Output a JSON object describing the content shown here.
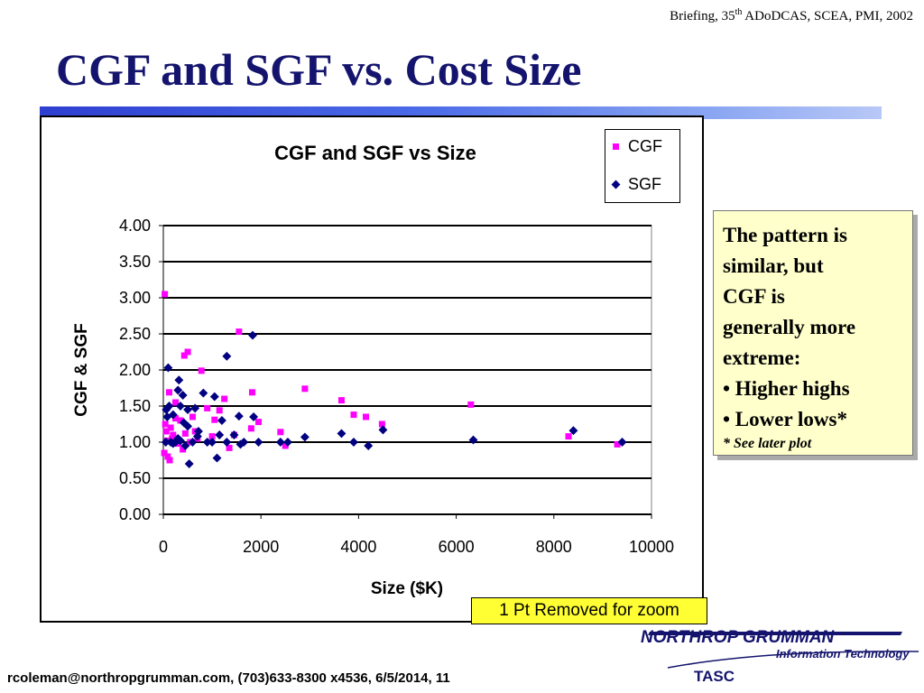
{
  "header": {
    "briefing_prefix": "Briefing, 35",
    "briefing_sup": "th",
    "briefing_suffix": " ADoDCAS, SCEA, PMI, 2002"
  },
  "slide_title": "CGF and SGF vs. Cost Size",
  "chart_data": {
    "type": "scatter",
    "title": "CGF and SGF vs Size",
    "xlabel": "Size ($K)",
    "ylabel": "CGF & SGF",
    "xlim": [
      0,
      10000
    ],
    "ylim": [
      0,
      4
    ],
    "x_ticks": [
      "0",
      "2000",
      "4000",
      "6000",
      "8000",
      "10000"
    ],
    "y_ticks": [
      "0.00",
      "0.50",
      "1.00",
      "1.50",
      "2.00",
      "2.50",
      "3.00",
      "3.50",
      "4.00"
    ],
    "grid": "horizontal",
    "legend_position": "top-right",
    "series": [
      {
        "name": "CGF",
        "color": "#ff00ff",
        "marker": "square",
        "points": [
          [
            30,
            3.05
          ],
          [
            1550,
            2.53
          ],
          [
            500,
            2.25
          ],
          [
            430,
            2.2
          ],
          [
            780,
            1.99
          ],
          [
            2900,
            1.74
          ],
          [
            120,
            1.69
          ],
          [
            1820,
            1.69
          ],
          [
            3650,
            1.58
          ],
          [
            1250,
            1.6
          ],
          [
            6300,
            1.52
          ],
          [
            900,
            1.47
          ],
          [
            1150,
            1.44
          ],
          [
            3900,
            1.38
          ],
          [
            4150,
            1.35
          ],
          [
            1050,
            1.31
          ],
          [
            1950,
            1.28
          ],
          [
            4480,
            1.25
          ],
          [
            250,
            1.33
          ],
          [
            350,
            1.3
          ],
          [
            600,
            1.35
          ],
          [
            40,
            1.25
          ],
          [
            150,
            1.2
          ],
          [
            1800,
            1.19
          ],
          [
            2400,
            1.14
          ],
          [
            60,
            1.15
          ],
          [
            200,
            1.1
          ],
          [
            450,
            1.12
          ],
          [
            700,
            1.05
          ],
          [
            1000,
            1.08
          ],
          [
            1450,
            1.1
          ],
          [
            8300,
            1.08
          ],
          [
            80,
            1.02
          ],
          [
            300,
            0.98
          ],
          [
            550,
            1.0
          ],
          [
            1350,
            0.92
          ],
          [
            2500,
            0.95
          ],
          [
            9300,
            0.97
          ],
          [
            20,
            0.85
          ],
          [
            90,
            0.8
          ],
          [
            130,
            0.75
          ],
          [
            400,
            0.9
          ],
          [
            250,
            1.55
          ],
          [
            180,
            1.05
          ],
          [
            650,
            1.15
          ]
        ]
      },
      {
        "name": "SGF",
        "color": "#000080",
        "marker": "diamond",
        "points": [
          [
            1830,
            2.48
          ],
          [
            1300,
            2.19
          ],
          [
            100,
            2.03
          ],
          [
            320,
            1.86
          ],
          [
            300,
            1.72
          ],
          [
            400,
            1.65
          ],
          [
            820,
            1.68
          ],
          [
            1050,
            1.63
          ],
          [
            120,
            1.5
          ],
          [
            350,
            1.5
          ],
          [
            500,
            1.45
          ],
          [
            650,
            1.47
          ],
          [
            1550,
            1.36
          ],
          [
            1850,
            1.35
          ],
          [
            200,
            1.38
          ],
          [
            80,
            1.35
          ],
          [
            420,
            1.27
          ],
          [
            500,
            1.22
          ],
          [
            1200,
            1.3
          ],
          [
            720,
            1.15
          ],
          [
            4500,
            1.17
          ],
          [
            8400,
            1.16
          ],
          [
            3650,
            1.12
          ],
          [
            1450,
            1.1
          ],
          [
            1150,
            1.1
          ],
          [
            2900,
            1.07
          ],
          [
            6350,
            1.03
          ],
          [
            9400,
            1.0
          ],
          [
            600,
            1.0
          ],
          [
            900,
            1.0
          ],
          [
            1000,
            1.0
          ],
          [
            1300,
            1.0
          ],
          [
            1950,
            1.0
          ],
          [
            2400,
            1.0
          ],
          [
            2550,
            1.0
          ],
          [
            3900,
            1.0
          ],
          [
            50,
            1.0
          ],
          [
            150,
            1.0
          ],
          [
            250,
            1.0
          ],
          [
            350,
            1.02
          ],
          [
            450,
            0.95
          ],
          [
            1580,
            0.97
          ],
          [
            4200,
            0.95
          ],
          [
            1100,
            0.78
          ],
          [
            530,
            0.7
          ],
          [
            200,
            0.98
          ],
          [
            300,
            1.05
          ],
          [
            700,
            1.08
          ],
          [
            1650,
            1.0
          ],
          [
            60,
            1.45
          ]
        ]
      }
    ]
  },
  "note": {
    "lines": [
      "The pattern is",
      "similar, but",
      "CGF is",
      "generally more",
      "extreme:",
      "• Higher highs",
      "• Lower lows*"
    ],
    "footnote": "* See later plot"
  },
  "zoom_note": "1 Pt Removed for zoom",
  "footer": "rcoleman@northropgrumman.com, (703)633-8300 x4536, 6/5/2014, 11",
  "logo": {
    "company": "NORTHROP GRUMMAN",
    "division": "Information Technology",
    "color": "#14146e"
  },
  "tasc": "TASC"
}
